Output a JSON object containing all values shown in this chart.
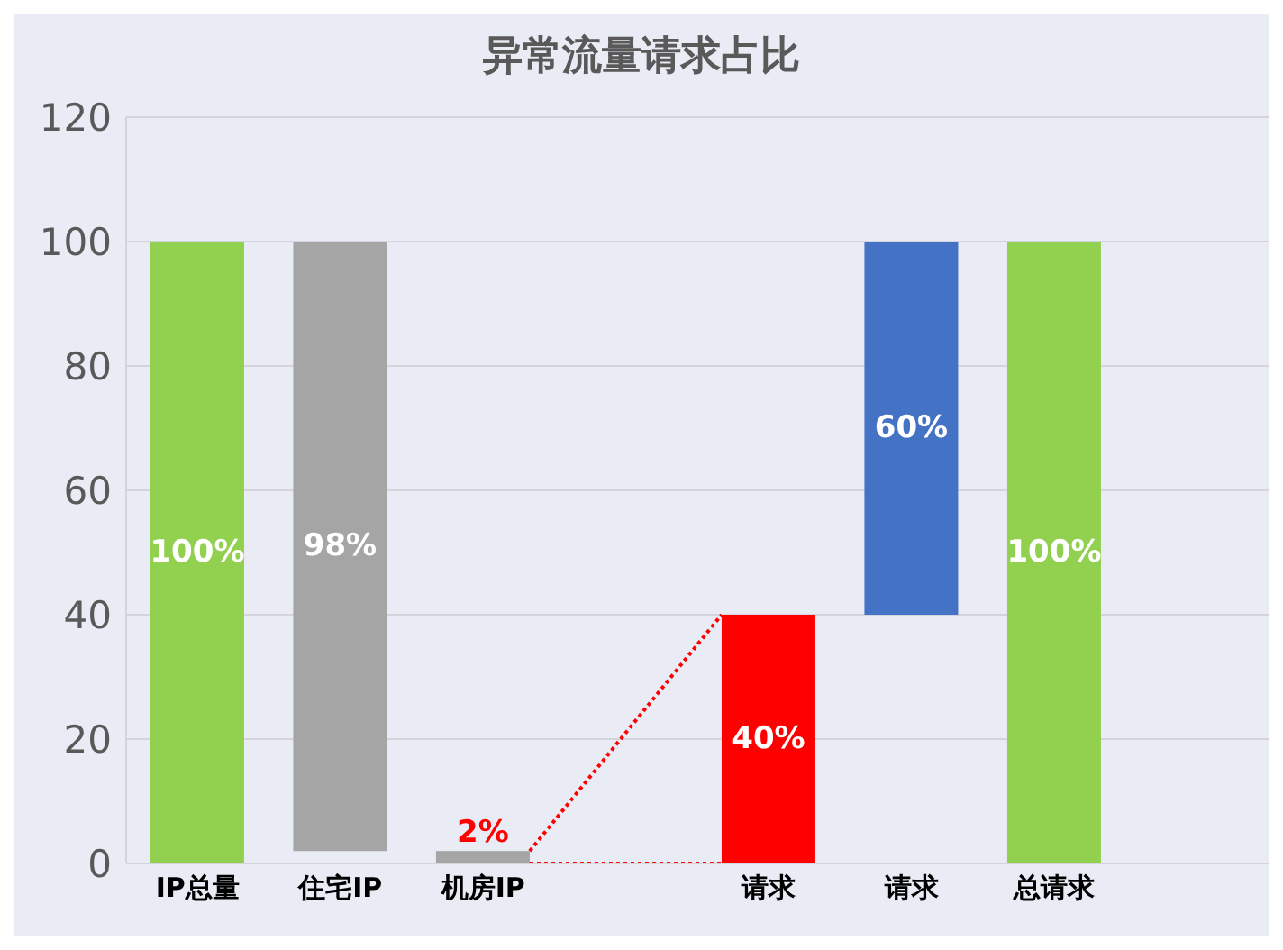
{
  "chart_data": {
    "type": "bar",
    "title": "异常流量请求占比",
    "categories": [
      "IP总量",
      "住宅IP",
      "机房IP",
      null,
      "请求",
      "请求",
      "总请求",
      null
    ],
    "values": [
      100,
      98,
      2,
      null,
      40,
      60,
      100,
      null
    ],
    "base": [
      0,
      2,
      0,
      null,
      0,
      40,
      0,
      null
    ],
    "colors": [
      "#92d050",
      "#a5a5a5",
      "#a5a5a5",
      null,
      "#ff0000",
      "#4472c4",
      "#92d050",
      null
    ],
    "value_labels": [
      "100%",
      "98%",
      "2%",
      null,
      "40%",
      "60%",
      "100%",
      null
    ],
    "ylim": [
      0,
      120
    ],
    "yticks": [
      0,
      20,
      40,
      60,
      80,
      100,
      120
    ],
    "grid": "y"
  }
}
